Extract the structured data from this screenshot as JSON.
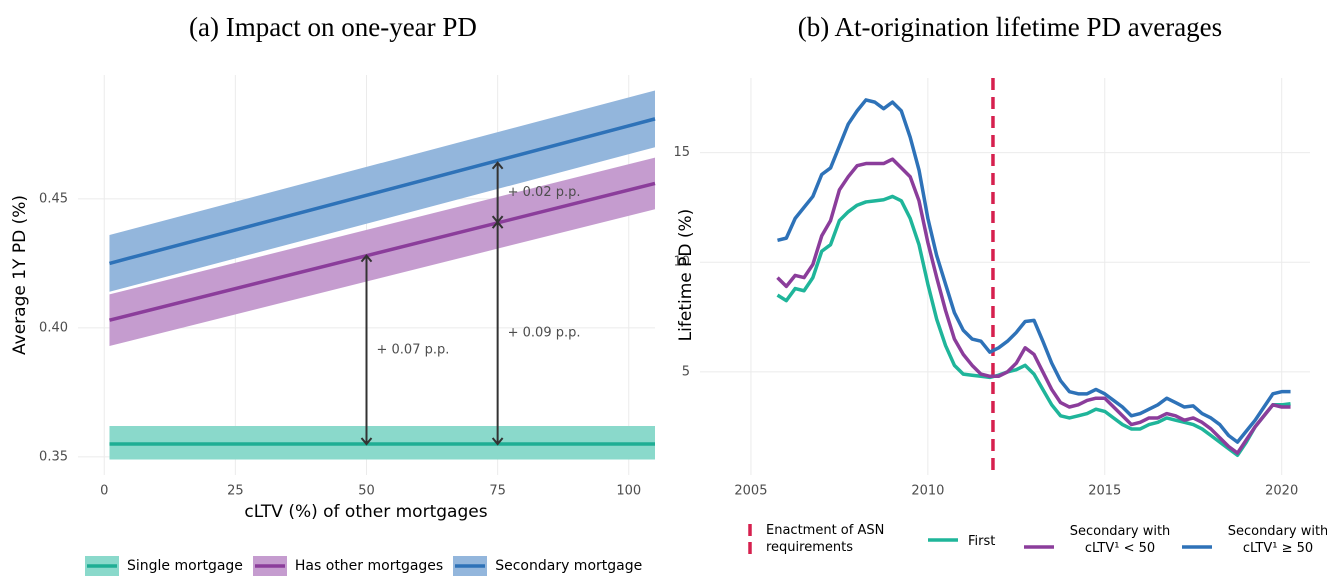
{
  "chart_data": [
    {
      "type": "line",
      "title": "(a) Impact on one-year PD",
      "x_label": "cLTV (%) of other mortgages",
      "y_label": "Average 1Y PD (%)",
      "xlim": [
        -5,
        105
      ],
      "ylim": [
        0.343,
        0.498
      ],
      "xticks": [
        0,
        25,
        50,
        75,
        100
      ],
      "yticks": [
        0.35,
        {
          "value": 0.4,
          "label": "0.40"
        },
        0.45
      ],
      "grid": true,
      "legend": "bottom",
      "series": [
        {
          "name": "Single mortgage",
          "color": "#1fae94",
          "band_color": "#8ad9cb",
          "x": [
            1,
            105
          ],
          "values": [
            0.355,
            0.355
          ],
          "lower": [
            0.349,
            0.349
          ],
          "upper": [
            0.362,
            0.362
          ]
        },
        {
          "name": "Has other mortgages",
          "color": "#8b3d9b",
          "band_color": "#c59ccf",
          "x": [
            1,
            105
          ],
          "values": [
            0.403,
            0.456
          ],
          "lower": [
            0.393,
            0.446
          ],
          "upper": [
            0.413,
            0.466
          ]
        },
        {
          "name": "Secondary mortgage",
          "color": "#2e72b8",
          "band_color": "#93b6dc",
          "x": [
            1,
            105
          ],
          "values": [
            0.425,
            0.481
          ],
          "lower": [
            0.414,
            0.47
          ],
          "upper": [
            0.436,
            0.492
          ]
        }
      ],
      "annotations": [
        {
          "text": "+ 0.07 p.p.",
          "x": 50,
          "y_from": 0.355,
          "y_to": 0.428
        },
        {
          "text": "+ 0.09 p.p.",
          "x": 75,
          "y_from": 0.355,
          "y_to": 0.441
        },
        {
          "text": "+ 0.02 p.p.",
          "x": 75,
          "y_from": 0.441,
          "y_to": 0.464
        }
      ]
    },
    {
      "type": "line",
      "title": "(b) At-origination lifetime PD averages",
      "y_label": "Lifetime PD (%)",
      "xlim": [
        2003.56,
        2020.8
      ],
      "ylim": [
        0.3,
        18.4
      ],
      "xticks": [
        2005,
        2010,
        2015,
        2020
      ],
      "yticks": [
        5,
        10,
        15
      ],
      "grid": true,
      "legend": "bottom",
      "vline": {
        "x": 2011.84,
        "color": "#d6204e",
        "label": "Enactment of ASN requirements"
      },
      "x": [
        2005.75,
        2006,
        2006.25,
        2006.5,
        2006.75,
        2007,
        2007.25,
        2007.5,
        2007.75,
        2008,
        2008.25,
        2008.5,
        2008.75,
        2009,
        2009.25,
        2009.5,
        2009.75,
        2010,
        2010.25,
        2010.5,
        2010.75,
        2011,
        2011.25,
        2011.5,
        2011.75,
        2012,
        2012.25,
        2012.5,
        2012.75,
        2013,
        2013.25,
        2013.5,
        2013.75,
        2014,
        2014.25,
        2014.5,
        2014.75,
        2015,
        2015.25,
        2015.5,
        2015.75,
        2016,
        2016.25,
        2016.5,
        2016.75,
        2017,
        2017.25,
        2017.5,
        2017.75,
        2018,
        2018.25,
        2018.5,
        2018.75,
        2019,
        2019.25,
        2019.5,
        2019.75,
        2020,
        2020.25
      ],
      "series": [
        {
          "name": "First",
          "color": "#1fb59a",
          "values": [
            8.5,
            8.25,
            8.8,
            8.7,
            9.3,
            10.5,
            10.8,
            11.9,
            12.3,
            12.6,
            12.75,
            12.8,
            12.85,
            13.0,
            12.8,
            12.0,
            10.8,
            9.0,
            7.4,
            6.2,
            5.3,
            4.9,
            4.85,
            4.8,
            4.75,
            4.85,
            5.0,
            5.1,
            5.3,
            4.9,
            4.2,
            3.5,
            3.0,
            2.9,
            3.0,
            3.1,
            3.3,
            3.2,
            2.9,
            2.6,
            2.4,
            2.4,
            2.6,
            2.7,
            2.9,
            2.8,
            2.7,
            2.6,
            2.4,
            2.1,
            1.8,
            1.5,
            1.2,
            1.8,
            2.5,
            3.0,
            3.5,
            3.5,
            3.55
          ]
        },
        {
          "name": "Secondary with cLTV¹ < 50",
          "color": "#8b3d9b",
          "values": [
            9.3,
            8.9,
            9.4,
            9.3,
            9.9,
            11.2,
            11.9,
            13.3,
            13.9,
            14.4,
            14.5,
            14.5,
            14.5,
            14.7,
            14.3,
            13.9,
            12.8,
            10.9,
            9.3,
            7.8,
            6.5,
            5.8,
            5.3,
            4.9,
            4.8,
            4.8,
            5.0,
            5.4,
            6.1,
            5.8,
            5.0,
            4.2,
            3.6,
            3.4,
            3.5,
            3.7,
            3.8,
            3.8,
            3.4,
            3.0,
            2.6,
            2.7,
            2.9,
            2.9,
            3.1,
            3.0,
            2.8,
            2.9,
            2.7,
            2.4,
            2.0,
            1.6,
            1.3,
            1.9,
            2.5,
            3.0,
            3.5,
            3.4,
            3.4
          ]
        },
        {
          "name": "Secondary with cLTV¹ ≥ 50",
          "color": "#2e72b8",
          "values": [
            11.0,
            11.1,
            12.0,
            12.5,
            13.0,
            14.0,
            14.3,
            15.3,
            16.3,
            16.9,
            17.4,
            17.3,
            17.0,
            17.3,
            16.9,
            15.7,
            14.2,
            12.0,
            10.3,
            9.0,
            7.7,
            6.9,
            6.5,
            6.4,
            5.9,
            6.1,
            6.4,
            6.8,
            7.3,
            7.35,
            6.4,
            5.4,
            4.6,
            4.1,
            4.0,
            4.0,
            4.2,
            4.0,
            3.7,
            3.4,
            3.0,
            3.1,
            3.3,
            3.5,
            3.8,
            3.6,
            3.4,
            3.45,
            3.1,
            2.9,
            2.6,
            2.1,
            1.8,
            2.3,
            2.8,
            3.4,
            4.0,
            4.1,
            4.1
          ]
        }
      ]
    }
  ]
}
